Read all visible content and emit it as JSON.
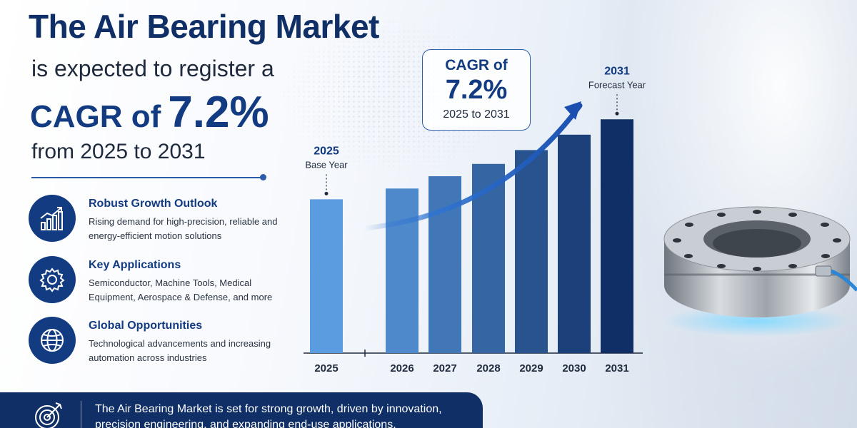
{
  "header": {
    "title": "The Air Bearing Market",
    "subtitle": "is expected to register a",
    "cagr_label": "CAGR of",
    "cagr_value": "7.2%",
    "range": "from 2025 to 2031"
  },
  "features": [
    {
      "title": "Robust Growth Outlook",
      "desc": "Rising demand for high-precision, reliable and energy-efficient motion solutions",
      "icon": "growth-chart-icon"
    },
    {
      "title": "Key Applications",
      "desc": "Semiconductor, Machine Tools, Medical Equipment, Aerospace & Defense, and more",
      "icon": "gear-icon"
    },
    {
      "title": "Global Opportunities",
      "desc": "Technological advancements and increasing automation across industries",
      "icon": "globe-icon"
    }
  ],
  "callout": {
    "line1": "CAGR of",
    "value": "7.2%",
    "range": "2025 to 2031"
  },
  "footer": {
    "text": "The Air Bearing Market is set for strong growth, driven by innovation, precision engineering, and expanding end-use applications.",
    "icon": "target-icon"
  },
  "colors": {
    "navy": "#0f2f66",
    "accent": "#123b82",
    "bar_light": "#5b9be0",
    "bar_dark": "#0f2f66"
  },
  "chart_data": {
    "type": "bar",
    "categories": [
      "2025",
      "2026",
      "2027",
      "2028",
      "2029",
      "2030",
      "2031"
    ],
    "values": [
      1.0,
      1.07,
      1.15,
      1.23,
      1.32,
      1.42,
      1.52
    ],
    "value_unit": "relative",
    "title": "",
    "xlabel": "",
    "ylabel": "",
    "ylim": [
      0,
      1.6
    ],
    "grid": false,
    "annotations": [
      {
        "category": "2025",
        "year": "2025",
        "label": "Base Year"
      },
      {
        "category": "2031",
        "year": "2031",
        "label": "Forecast Year"
      }
    ],
    "trend_arrow": true
  }
}
